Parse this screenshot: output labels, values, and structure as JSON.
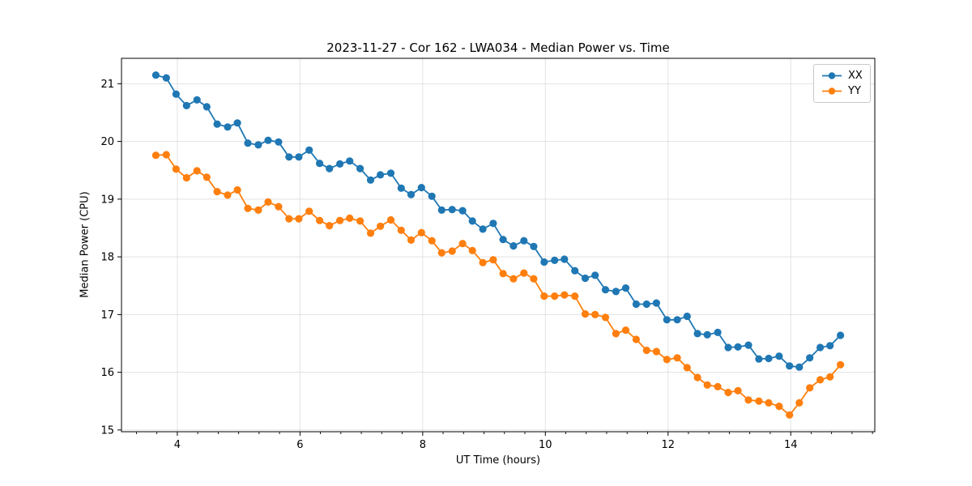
{
  "chart_data": {
    "type": "line",
    "title": "2023-11-27 - Cor 162 - LWA034 - Median Power vs. Time",
    "xlabel": "UT Time (hours)",
    "ylabel": "Median Power (CPU)",
    "xlim": [
      3.09,
      15.37
    ],
    "ylim": [
      14.97,
      21.44
    ],
    "x_ticks": [
      4,
      6,
      8,
      10,
      12,
      14
    ],
    "y_ticks": [
      15,
      16,
      17,
      18,
      19,
      20,
      21
    ],
    "x_minor_tick_step": 0.3333,
    "grid": true,
    "grid_color": "#d4d4d4",
    "legend_position": "upper right",
    "x": [
      3.65,
      3.82,
      3.98,
      4.15,
      4.32,
      4.48,
      4.65,
      4.82,
      4.98,
      5.15,
      5.32,
      5.48,
      5.65,
      5.82,
      5.98,
      6.15,
      6.32,
      6.48,
      6.65,
      6.81,
      6.98,
      7.15,
      7.31,
      7.48,
      7.65,
      7.81,
      7.98,
      8.15,
      8.31,
      8.48,
      8.65,
      8.81,
      8.98,
      9.15,
      9.31,
      9.48,
      9.65,
      9.81,
      9.98,
      10.15,
      10.31,
      10.48,
      10.65,
      10.81,
      10.98,
      11.15,
      11.31,
      11.48,
      11.65,
      11.81,
      11.98,
      12.15,
      12.31,
      12.48,
      12.64,
      12.81,
      12.98,
      13.14,
      13.31,
      13.48,
      13.64,
      13.81,
      13.98,
      14.14,
      14.31,
      14.48,
      14.64,
      14.81
    ],
    "series": [
      {
        "name": "XX",
        "color": "#1f77b4",
        "marker": "circle",
        "values": [
          21.15,
          21.1,
          20.82,
          20.62,
          20.72,
          20.6,
          20.3,
          20.25,
          20.32,
          19.97,
          19.94,
          20.02,
          19.99,
          19.73,
          19.73,
          19.85,
          19.62,
          19.53,
          19.61,
          19.66,
          19.53,
          19.33,
          19.42,
          19.45,
          19.19,
          19.08,
          19.2,
          19.05,
          18.81,
          18.82,
          18.8,
          18.62,
          18.48,
          18.58,
          18.3,
          18.19,
          18.28,
          18.18,
          17.91,
          17.94,
          17.96,
          17.76,
          17.63,
          17.68,
          17.43,
          17.4,
          17.46,
          17.18,
          17.18,
          17.2,
          16.91,
          16.91,
          16.97,
          16.67,
          16.65,
          16.69,
          16.43,
          16.44,
          16.47,
          16.23,
          16.24,
          16.28,
          16.11,
          16.09,
          16.25,
          16.43,
          16.46,
          16.64
        ]
      },
      {
        "name": "YY",
        "color": "#ff7f0e",
        "marker": "circle",
        "values": [
          19.76,
          19.77,
          19.52,
          19.37,
          19.49,
          19.38,
          19.13,
          19.07,
          19.16,
          18.84,
          18.81,
          18.95,
          18.87,
          18.66,
          18.66,
          18.79,
          18.63,
          18.54,
          18.63,
          18.67,
          18.62,
          18.41,
          18.53,
          18.64,
          18.46,
          18.29,
          18.42,
          18.28,
          18.07,
          18.1,
          18.23,
          18.11,
          17.9,
          17.95,
          17.71,
          17.62,
          17.72,
          17.62,
          17.32,
          17.32,
          17.34,
          17.32,
          17.01,
          17.0,
          16.95,
          16.67,
          16.73,
          16.57,
          16.38,
          16.36,
          16.22,
          16.25,
          16.08,
          15.91,
          15.78,
          15.75,
          15.65,
          15.68,
          15.52,
          15.5,
          15.47,
          15.41,
          15.26,
          15.47,
          15.73,
          15.87,
          15.92,
          16.13
        ]
      }
    ]
  }
}
